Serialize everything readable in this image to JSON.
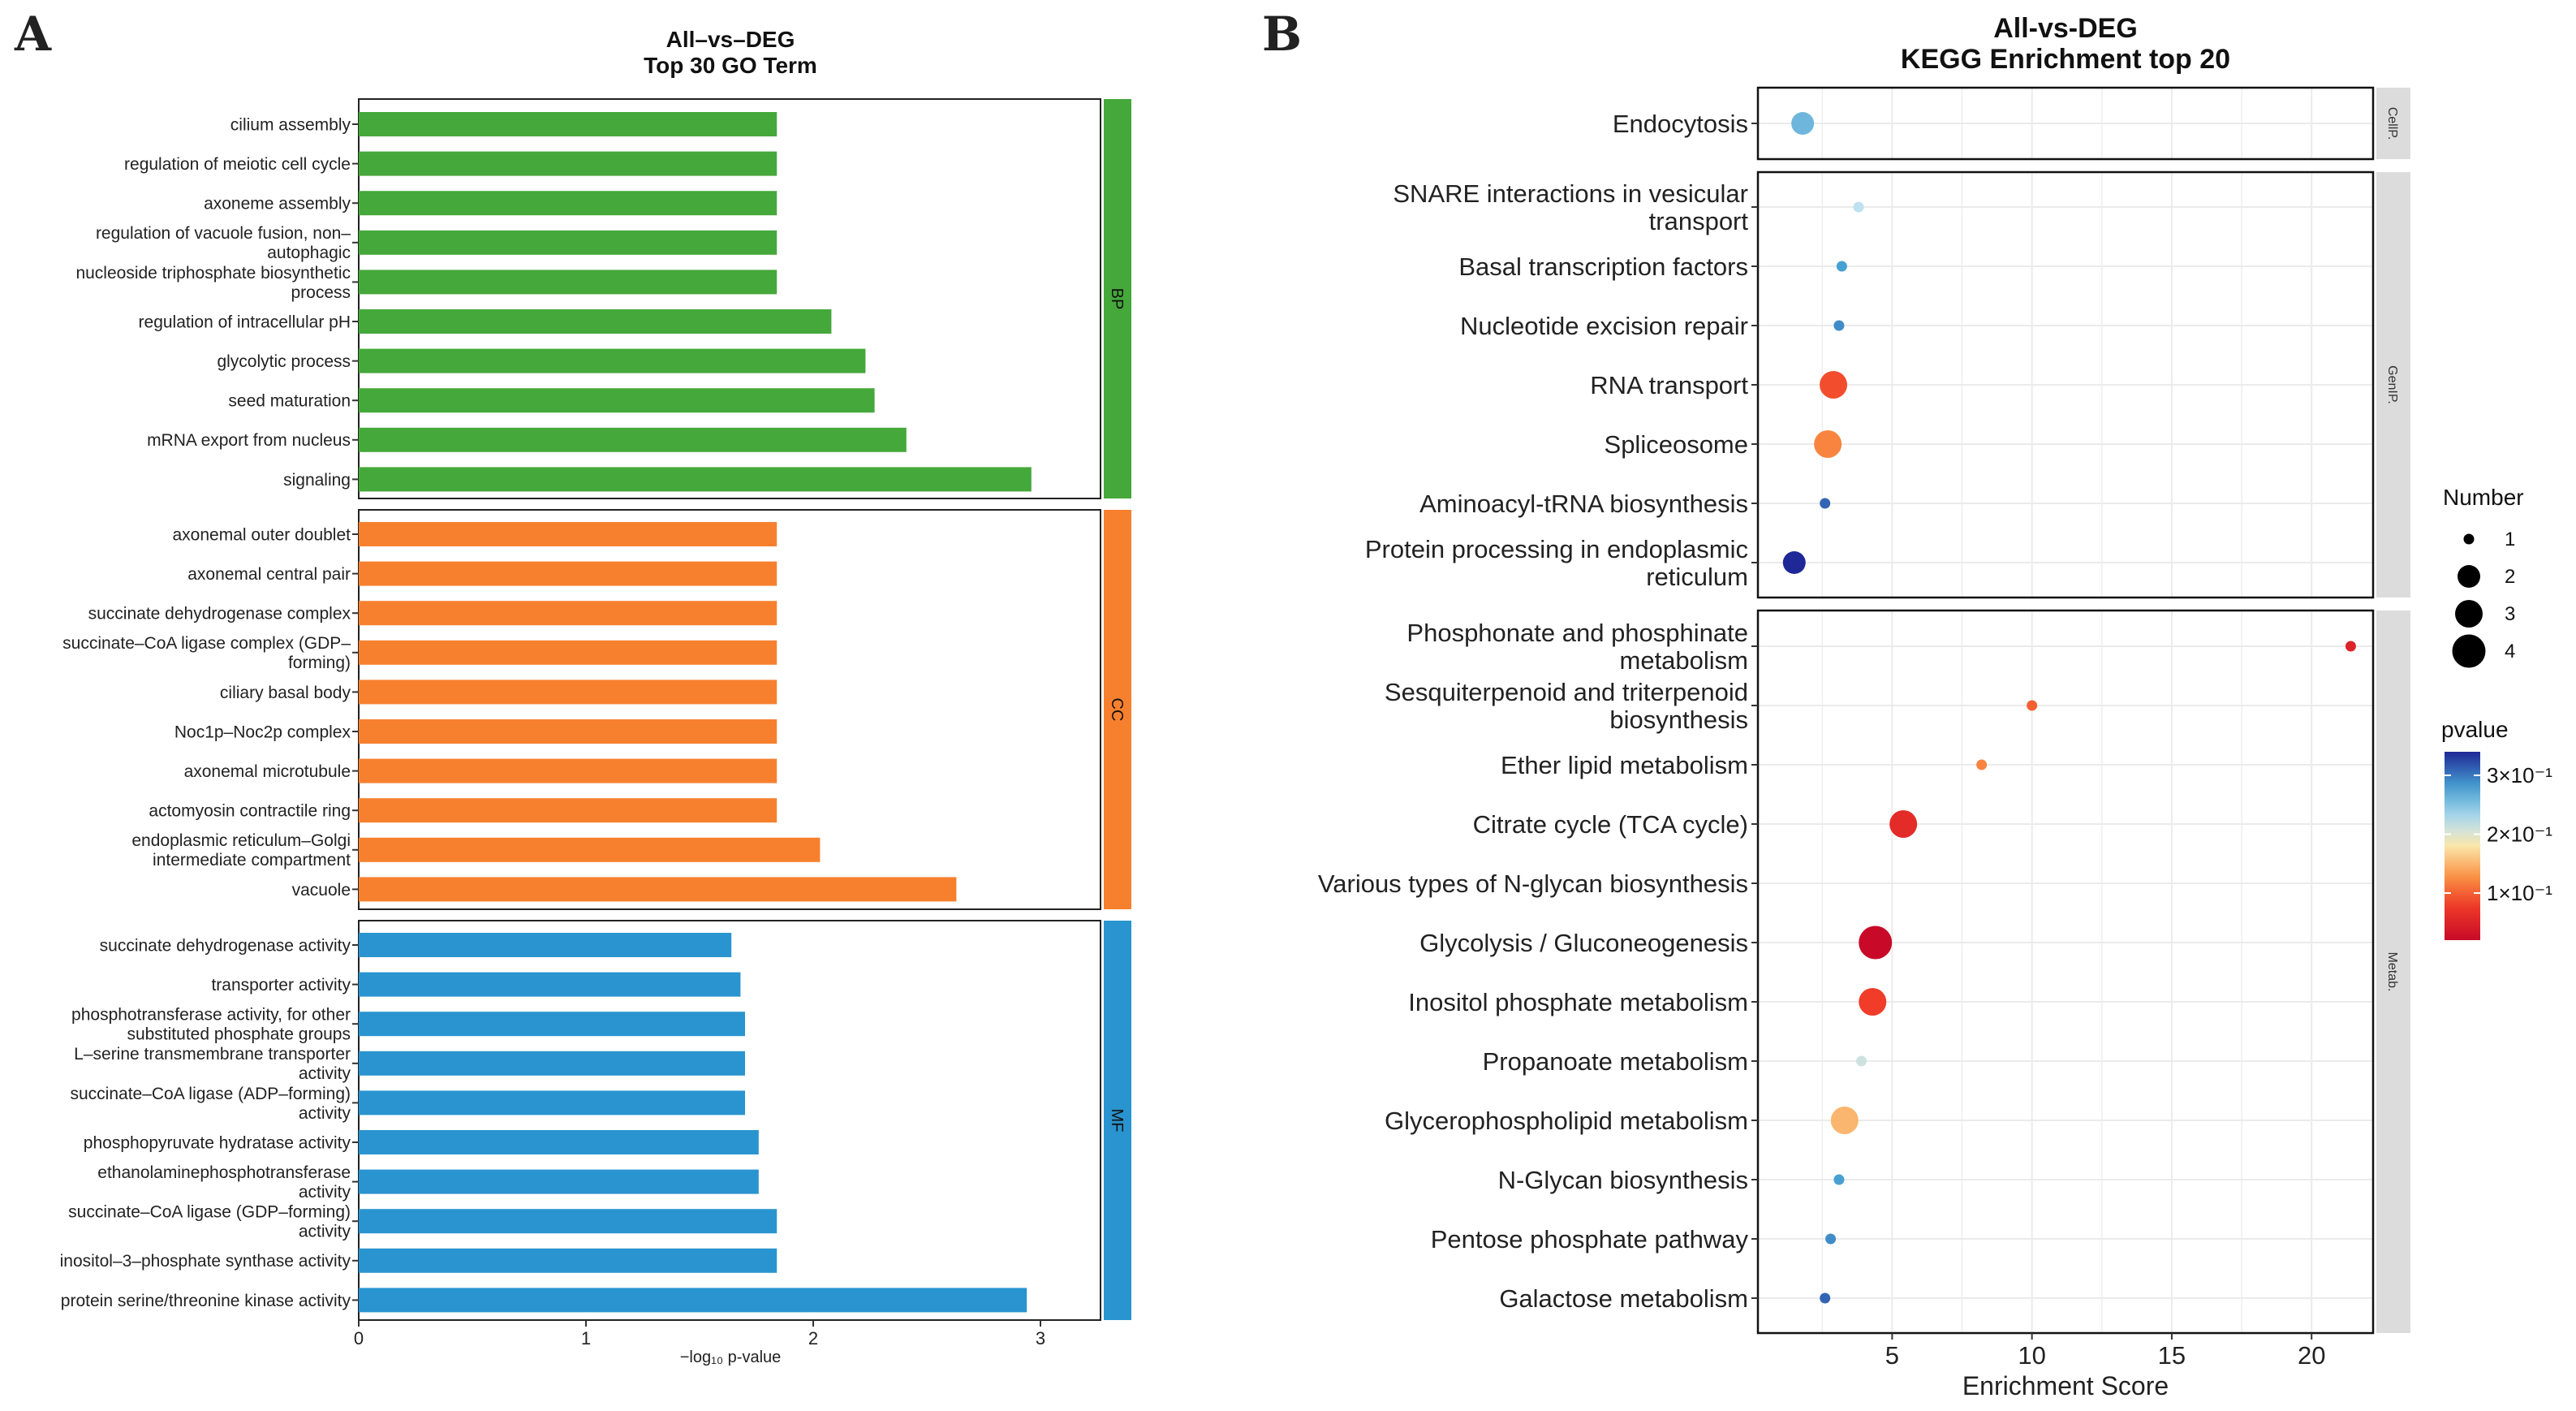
{
  "panel_a": {
    "letter": "A",
    "title_line1": "All–vs–DEG",
    "title_line2": "Top 30 GO Term",
    "x_label": "−log₁₀ p-value"
  },
  "panel_b": {
    "letter": "B",
    "title_line1": "All-vs-DEG",
    "title_line2": "KEGG Enrichment top 20",
    "x_label": "Enrichment Score",
    "legend_number_title": "Number",
    "legend_pvalue_title": "pvalue",
    "legend_pvalue_labels": [
      "3×10⁻¹",
      "2×10⁻¹",
      "1×10⁻¹"
    ]
  },
  "colors": {
    "BP": "#45a83a",
    "CC": "#f7802f",
    "MF": "#2994cf",
    "strip_gray": "#dcdcdc",
    "grid": "#ebebeb"
  },
  "chart_data": [
    {
      "type": "bar",
      "orientation": "horizontal",
      "title": "All–vs–DEG Top 30 GO Term",
      "xlabel": "−log₁₀ p-value",
      "xlim": [
        0,
        3.25
      ],
      "xticks": [
        0,
        1,
        2,
        3
      ],
      "facets": [
        {
          "name": "BP",
          "terms": [
            {
              "label": [
                "cilium assembly"
              ],
              "value": 1.84
            },
            {
              "label": [
                "regulation of meiotic cell cycle"
              ],
              "value": 1.84
            },
            {
              "label": [
                "axoneme assembly"
              ],
              "value": 1.84
            },
            {
              "label": [
                "regulation of vacuole fusion, non–",
                "autophagic"
              ],
              "value": 1.84
            },
            {
              "label": [
                "nucleoside triphosphate biosynthetic",
                "process"
              ],
              "value": 1.84
            },
            {
              "label": [
                "regulation of intracellular pH"
              ],
              "value": 2.08
            },
            {
              "label": [
                "glycolytic process"
              ],
              "value": 2.23
            },
            {
              "label": [
                "seed maturation"
              ],
              "value": 2.27
            },
            {
              "label": [
                "mRNA export from nucleus"
              ],
              "value": 2.41
            },
            {
              "label": [
                "signaling"
              ],
              "value": 2.96
            }
          ]
        },
        {
          "name": "CC",
          "terms": [
            {
              "label": [
                "axonemal outer doublet"
              ],
              "value": 1.84
            },
            {
              "label": [
                "axonemal central pair"
              ],
              "value": 1.84
            },
            {
              "label": [
                "succinate dehydrogenase complex"
              ],
              "value": 1.84
            },
            {
              "label": [
                "succinate–CoA ligase complex (GDP–",
                "forming)"
              ],
              "value": 1.84
            },
            {
              "label": [
                "ciliary basal body"
              ],
              "value": 1.84
            },
            {
              "label": [
                "Noc1p–Noc2p complex"
              ],
              "value": 1.84
            },
            {
              "label": [
                "axonemal microtubule"
              ],
              "value": 1.84
            },
            {
              "label": [
                "actomyosin contractile ring"
              ],
              "value": 1.84
            },
            {
              "label": [
                "endoplasmic reticulum–Golgi",
                "intermediate compartment"
              ],
              "value": 2.03
            },
            {
              "label": [
                "vacuole"
              ],
              "value": 2.63
            }
          ]
        },
        {
          "name": "MF",
          "terms": [
            {
              "label": [
                "succinate dehydrogenase activity"
              ],
              "value": 1.64
            },
            {
              "label": [
                "transporter activity"
              ],
              "value": 1.68
            },
            {
              "label": [
                "phosphotransferase activity, for other",
                "substituted phosphate groups"
              ],
              "value": 1.7
            },
            {
              "label": [
                "L–serine transmembrane transporter",
                "activity"
              ],
              "value": 1.7
            },
            {
              "label": [
                "succinate–CoA ligase (ADP–forming)",
                "activity"
              ],
              "value": 1.7
            },
            {
              "label": [
                "phosphopyruvate hydratase activity"
              ],
              "value": 1.76
            },
            {
              "label": [
                "ethanolaminephosphotransferase",
                "activity"
              ],
              "value": 1.76
            },
            {
              "label": [
                "succinate–CoA ligase (GDP–forming)",
                "activity"
              ],
              "value": 1.84
            },
            {
              "label": [
                "inositol–3–phosphate synthase activity"
              ],
              "value": 1.84
            },
            {
              "label": [
                "protein serine/threonine kinase activity"
              ],
              "value": 2.94
            }
          ]
        }
      ]
    },
    {
      "type": "scatter",
      "title": "All-vs-DEG KEGG Enrichment top 20",
      "xlabel": "Enrichment Score",
      "xlim": [
        0.2,
        22.2
      ],
      "xticks": [
        5,
        10,
        15,
        20
      ],
      "size_legend": {
        "title": "Number",
        "values": [
          1,
          2,
          3,
          4
        ]
      },
      "color_legend": {
        "title": "pvalue",
        "range": [
          0.02,
          0.34
        ],
        "ticks": [
          0.3,
          0.2,
          0.1
        ]
      },
      "facets": [
        {
          "name": "CellP.",
          "points": [
            {
              "label": [
                "Endocytosis"
              ],
              "x": 1.8,
              "number": 2,
              "pvalue": 0.26
            }
          ]
        },
        {
          "name": "GenIP.",
          "points": [
            {
              "label": [
                "SNARE interactions in vesicular",
                "transport"
              ],
              "x": 3.8,
              "number": 1,
              "pvalue": 0.22
            },
            {
              "label": [
                "Basal transcription factors"
              ],
              "x": 3.2,
              "number": 1,
              "pvalue": 0.28
            },
            {
              "label": [
                "Nucleotide excision repair"
              ],
              "x": 3.1,
              "number": 1,
              "pvalue": 0.29
            },
            {
              "label": [
                "RNA transport"
              ],
              "x": 2.9,
              "number": 3,
              "pvalue": 0.09
            },
            {
              "label": [
                "Spliceosome"
              ],
              "x": 2.7,
              "number": 3,
              "pvalue": 0.12
            },
            {
              "label": [
                "Aminoacyl-tRNA biosynthesis"
              ],
              "x": 2.6,
              "number": 1,
              "pvalue": 0.31
            },
            {
              "label": [
                "Protein processing in endoplasmic",
                "reticulum"
              ],
              "x": 1.5,
              "number": 2,
              "pvalue": 0.34
            }
          ]
        },
        {
          "name": "Metab.",
          "points": [
            {
              "label": [
                "Phosphonate and phosphinate",
                "metabolism"
              ],
              "x": 21.4,
              "number": 1,
              "pvalue": 0.05
            },
            {
              "label": [
                "Sesquiterpenoid and triterpenoid",
                "biosynthesis"
              ],
              "x": 10.0,
              "number": 1,
              "pvalue": 0.1
            },
            {
              "label": [
                "Ether lipid metabolism"
              ],
              "x": 8.2,
              "number": 1,
              "pvalue": 0.12
            },
            {
              "label": [
                "Citrate cycle (TCA cycle)"
              ],
              "x": 5.4,
              "number": 3,
              "pvalue": 0.06
            },
            {
              "label": [
                "Various types of N-glycan biosynthesis"
              ],
              "x": null,
              "number": null,
              "pvalue": null
            },
            {
              "label": [
                "Glycolysis / Gluconeogenesis"
              ],
              "x": 4.4,
              "number": 4,
              "pvalue": 0.02
            },
            {
              "label": [
                "Inositol phosphate metabolism"
              ],
              "x": 4.3,
              "number": 3,
              "pvalue": 0.08
            },
            {
              "label": [
                "Propanoate metabolism"
              ],
              "x": 3.9,
              "number": 1,
              "pvalue": 0.21
            },
            {
              "label": [
                "Glycerophospholipid metabolism"
              ],
              "x": 3.3,
              "number": 3,
              "pvalue": 0.15
            },
            {
              "label": [
                "N-Glycan biosynthesis"
              ],
              "x": 3.1,
              "number": 1,
              "pvalue": 0.28
            },
            {
              "label": [
                "Pentose phosphate pathway"
              ],
              "x": 2.8,
              "number": 1,
              "pvalue": 0.29
            },
            {
              "label": [
                "Galactose metabolism"
              ],
              "x": 2.6,
              "number": 1,
              "pvalue": 0.31
            }
          ]
        }
      ]
    }
  ]
}
